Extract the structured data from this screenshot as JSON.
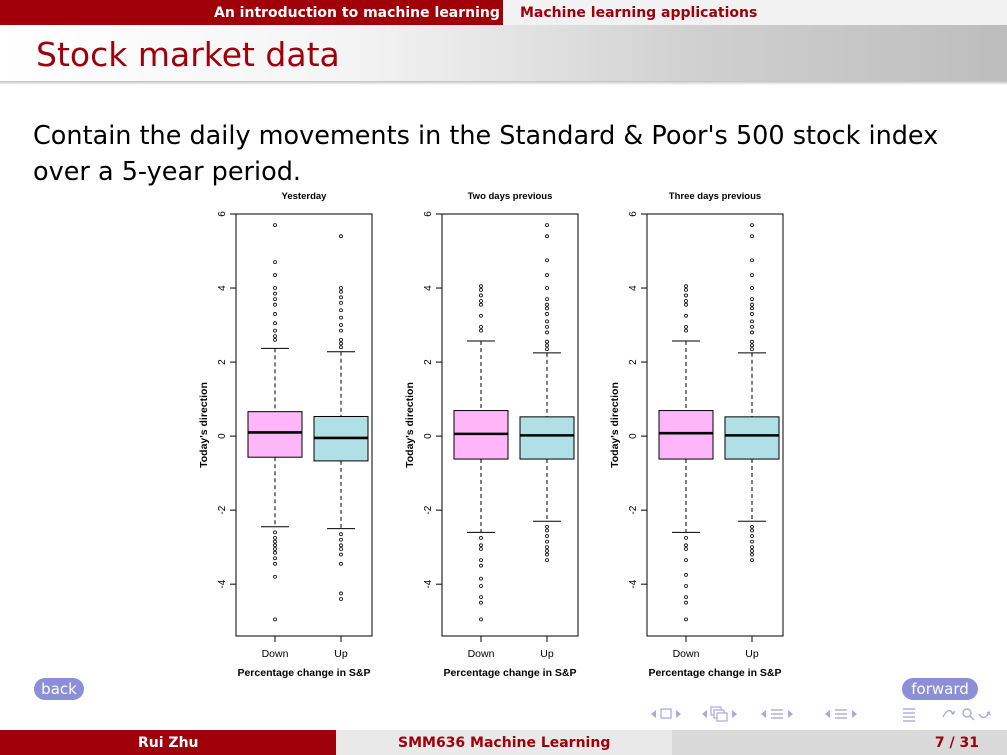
{
  "header": {
    "section_active": "An introduction to machine learning",
    "section_next": "Machine learning applications"
  },
  "slide": {
    "title": "Stock market data",
    "text": "Contain the daily movements in the Standard & Poor's 500 stock index over a 5-year period."
  },
  "chart_data": [
    {
      "type": "box",
      "title": "Yesterday",
      "xlabel": "Percentage change in S&P",
      "ylabel": "Today's direction",
      "categories": [
        "Down",
        "Up"
      ],
      "ylim": [
        -5.4,
        6.0
      ],
      "yticks": [
        -4,
        -2,
        0,
        2,
        4,
        6
      ],
      "colors": [
        "#ffb6f8",
        "#b0e0e6"
      ],
      "boxes": [
        {
          "name": "Down",
          "q1": -0.57,
          "median": 0.1,
          "q3": 0.66,
          "whisker_low": -2.45,
          "whisker_high": 2.37,
          "outliers": [
            5.7,
            4.7,
            4.35,
            4.0,
            3.85,
            3.7,
            3.55,
            3.3,
            3.05,
            2.85,
            2.7,
            2.6,
            -2.6,
            -2.75,
            -2.85,
            -2.95,
            -3.05,
            -3.15,
            -3.3,
            -3.45,
            -3.8,
            -4.95
          ]
        },
        {
          "name": "Up",
          "q1": -0.67,
          "median": -0.05,
          "q3": 0.53,
          "whisker_low": -2.5,
          "whisker_high": 2.28,
          "outliers": [
            5.4,
            4.0,
            3.9,
            3.75,
            3.6,
            3.4,
            3.2,
            3.0,
            2.85,
            2.6,
            2.5,
            2.4,
            -2.65,
            -2.8,
            -2.95,
            -3.05,
            -3.2,
            -3.45,
            -4.25,
            -4.4
          ]
        }
      ]
    },
    {
      "type": "box",
      "title": "Two days previous",
      "xlabel": "Percentage change in S&P",
      "ylabel": "Today's direction",
      "categories": [
        "Down",
        "Up"
      ],
      "ylim": [
        -5.4,
        6.0
      ],
      "yticks": [
        -4,
        -2,
        0,
        2,
        4,
        6
      ],
      "colors": [
        "#ffb6f8",
        "#b0e0e6"
      ],
      "boxes": [
        {
          "name": "Down",
          "q1": -0.62,
          "median": 0.06,
          "q3": 0.69,
          "whisker_low": -2.6,
          "whisker_high": 2.57,
          "outliers": [
            4.05,
            3.95,
            3.8,
            3.65,
            3.55,
            3.25,
            2.95,
            2.85,
            -2.75,
            -2.95,
            -3.05,
            -3.35,
            -3.5,
            -3.85,
            -4.05,
            -4.35,
            -4.5,
            -4.95
          ]
        },
        {
          "name": "Up",
          "q1": -0.62,
          "median": 0.02,
          "q3": 0.52,
          "whisker_low": -2.3,
          "whisker_high": 2.25,
          "outliers": [
            5.7,
            5.4,
            4.75,
            4.35,
            4.0,
            3.7,
            3.55,
            3.45,
            3.3,
            3.1,
            2.95,
            2.8,
            2.55,
            2.45,
            2.35,
            -2.45,
            -2.55,
            -2.7,
            -2.85,
            -3.0,
            -3.1,
            -3.2,
            -3.35
          ]
        }
      ]
    },
    {
      "type": "box",
      "title": "Three days previous",
      "xlabel": "Percentage change in S&P",
      "ylabel": "Today's direction",
      "categories": [
        "Down",
        "Up"
      ],
      "ylim": [
        -5.4,
        6.0
      ],
      "yticks": [
        -4,
        -2,
        0,
        2,
        4,
        6
      ],
      "colors": [
        "#ffb6f8",
        "#b0e0e6"
      ],
      "boxes": [
        {
          "name": "Down",
          "q1": -0.62,
          "median": 0.08,
          "q3": 0.69,
          "whisker_low": -2.6,
          "whisker_high": 2.57,
          "outliers": [
            4.05,
            3.95,
            3.8,
            3.65,
            3.55,
            3.25,
            2.95,
            2.85,
            -2.75,
            -2.95,
            -3.05,
            -3.35,
            -3.75,
            -4.05,
            -4.35,
            -4.5,
            -4.95
          ]
        },
        {
          "name": "Up",
          "q1": -0.62,
          "median": 0.02,
          "q3": 0.52,
          "whisker_low": -2.3,
          "whisker_high": 2.25,
          "outliers": [
            5.7,
            5.4,
            4.75,
            4.35,
            4.0,
            3.7,
            3.55,
            3.45,
            3.3,
            3.1,
            2.95,
            2.8,
            2.55,
            2.45,
            2.35,
            -2.45,
            -2.55,
            -2.7,
            -2.85,
            -3.0,
            -3.1,
            -3.2,
            -3.35
          ]
        }
      ]
    }
  ],
  "nav": {
    "back_label": "back",
    "forward_label": "forward"
  },
  "footer": {
    "author": "Rui Zhu",
    "course": "SMM636 Machine Learning",
    "page": "7 / 31"
  }
}
